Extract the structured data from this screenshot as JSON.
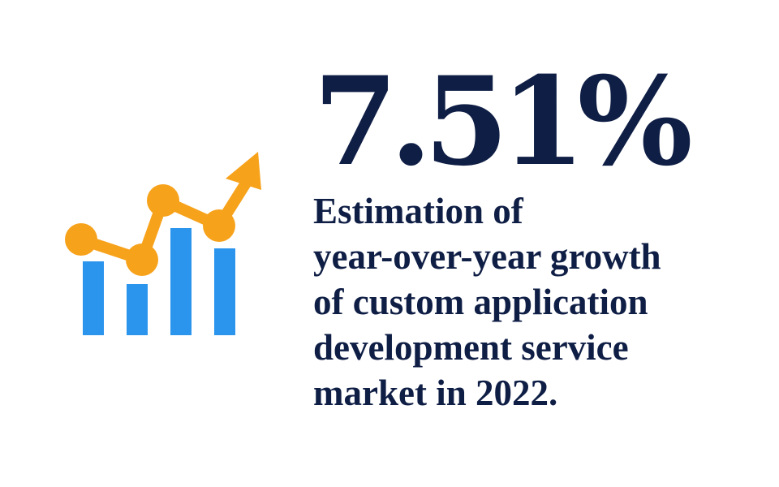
{
  "headline": "7.51%",
  "caption_lines": [
    "Estimation of",
    "year-over-year growth",
    "of custom application",
    "development service",
    "market in 2022."
  ],
  "icon": {
    "name": "growth-chart-icon",
    "bar_color": "#2b95ee",
    "line_color": "#f7a21b"
  },
  "colors": {
    "text": "#0f1e45",
    "background": "#ffffff"
  }
}
